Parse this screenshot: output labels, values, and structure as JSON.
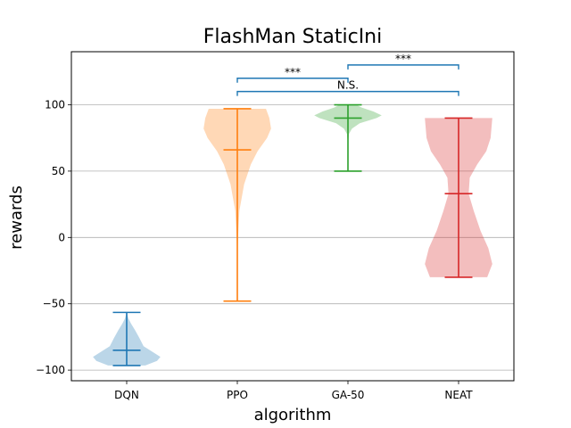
{
  "chart_data": {
    "type": "violin",
    "title": "FlashMan StaticIni",
    "xlabel": "algorithm",
    "ylabel": "rewards",
    "ylim": [
      -108,
      140
    ],
    "yticks": [
      -100,
      -50,
      0,
      50,
      100
    ],
    "ytick_labels": [
      "−100",
      "−50",
      "0",
      "50",
      "100"
    ],
    "grid": "horizontal",
    "categories": [
      "DQN",
      "PPO",
      "GA-50",
      "NEAT"
    ],
    "series": [
      {
        "category": "DQN",
        "color": "#1f77b4",
        "min": -96.5,
        "median": -85,
        "max": -56.5,
        "density": [
          [
            -96.5,
            0.55
          ],
          [
            -93,
            0.9
          ],
          [
            -90,
            1.0
          ],
          [
            -86,
            0.75
          ],
          [
            -82,
            0.5
          ],
          [
            -76,
            0.38
          ],
          [
            -70,
            0.25
          ],
          [
            -65,
            0.13
          ],
          [
            -61,
            0.05
          ],
          [
            -56.5,
            0.0
          ]
        ]
      },
      {
        "category": "PPO",
        "color": "#ff7f0e",
        "min": -48,
        "median": 66,
        "max": 97,
        "density": [
          [
            -48,
            0.0
          ],
          [
            -20,
            0.0
          ],
          [
            0,
            0.02
          ],
          [
            20,
            0.06
          ],
          [
            40,
            0.2
          ],
          [
            55,
            0.4
          ],
          [
            65,
            0.6
          ],
          [
            75,
            0.88
          ],
          [
            82,
            1.0
          ],
          [
            90,
            0.95
          ],
          [
            97,
            0.85
          ]
        ]
      },
      {
        "category": "GA-50",
        "color": "#2ca02c",
        "min": 50,
        "median": 90,
        "max": 100,
        "density": [
          [
            50,
            0.0
          ],
          [
            70,
            0.0
          ],
          [
            78,
            0.03
          ],
          [
            82,
            0.12
          ],
          [
            86,
            0.35
          ],
          [
            90,
            0.85
          ],
          [
            92,
            1.0
          ],
          [
            95,
            0.75
          ],
          [
            98,
            0.4
          ],
          [
            100,
            0.25
          ]
        ]
      },
      {
        "category": "NEAT",
        "color": "#d62728",
        "min": -30,
        "median": 33,
        "max": 90,
        "density": [
          [
            -30,
            0.85
          ],
          [
            -20,
            1.0
          ],
          [
            -8,
            0.88
          ],
          [
            5,
            0.65
          ],
          [
            20,
            0.45
          ],
          [
            33,
            0.3
          ],
          [
            45,
            0.33
          ],
          [
            55,
            0.55
          ],
          [
            65,
            0.82
          ],
          [
            75,
            0.95
          ],
          [
            90,
            1.0
          ]
        ]
      }
    ],
    "significance": [
      {
        "from": "PPO",
        "to": "GA-50",
        "label": "***",
        "level": 120
      },
      {
        "from": "GA-50",
        "to": "NEAT",
        "label": "***",
        "level": 130
      },
      {
        "from": "PPO",
        "to": "NEAT",
        "label": "N.S.",
        "level": 110
      }
    ]
  }
}
